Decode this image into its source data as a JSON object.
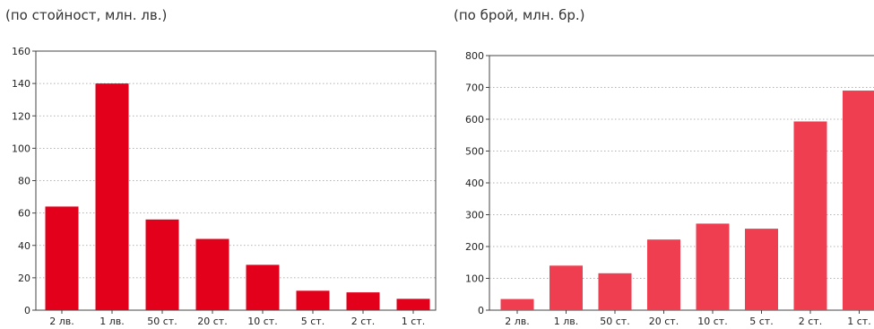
{
  "colors": {
    "left_bar": "#e2001a",
    "right_bar": "#ef3e50",
    "axis": "#444444",
    "grid": "#9a9a9a"
  },
  "chart_data": [
    {
      "type": "bar",
      "subtitle": "(по стойност, млн. лв.)",
      "categories": [
        "2 лв.",
        "1 лв.",
        "50 ст.",
        "20 ст.",
        "10 ст.",
        "5 ст.",
        "2 ст.",
        "1 ст."
      ],
      "values": [
        64,
        140,
        56,
        44,
        28,
        12,
        11,
        7
      ],
      "ylim": [
        0,
        160
      ],
      "yticks": [
        0,
        20,
        40,
        60,
        80,
        100,
        120,
        140,
        160
      ],
      "grid": true
    },
    {
      "type": "bar",
      "subtitle": "(по брой, млн. бр.)",
      "categories": [
        "2 лв.",
        "1 лв.",
        "50 ст.",
        "20 ст.",
        "10 ст.",
        "5 ст.",
        "2 ст.",
        "1 ст."
      ],
      "values": [
        35,
        140,
        116,
        222,
        272,
        256,
        593,
        690
      ],
      "ylim": [
        0,
        800
      ],
      "yticks": [
        0,
        100,
        200,
        300,
        400,
        500,
        600,
        700,
        800
      ],
      "grid": true
    }
  ]
}
